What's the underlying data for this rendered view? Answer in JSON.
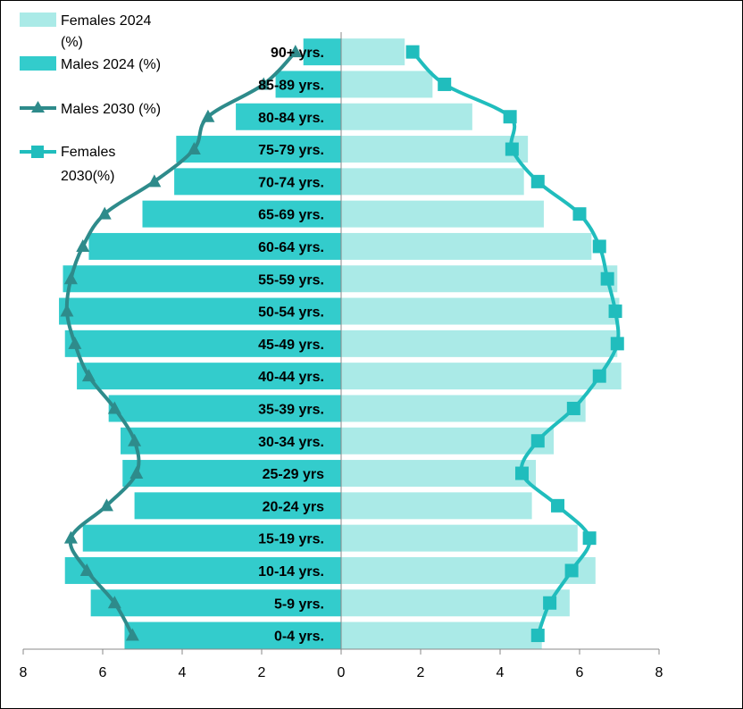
{
  "chart_data": {
    "type": "bar",
    "subtype": "population-pyramid",
    "categories": [
      "0-4 yrs.",
      "5-9 yrs.",
      "10-14 yrs.",
      "15-19 yrs.",
      "20-24 yrs",
      "25-29 yrs",
      "30-34 yrs.",
      "35-39 yrs.",
      "40-44 yrs.",
      "45-49 yrs.",
      "50-54 yrs.",
      "55-59 yrs.",
      "60-64 yrs.",
      "65-69 yrs.",
      "70-74 yrs.",
      "75-79 yrs.",
      "80-84 yrs.",
      "85-89 yrs.",
      "90+ yrs."
    ],
    "series": [
      {
        "name": "Females 2024 (%)",
        "kind": "bar",
        "side": "right",
        "color": "#aaeae7",
        "values": [
          5.05,
          5.75,
          6.4,
          5.95,
          4.8,
          4.9,
          5.35,
          6.15,
          7.05,
          6.95,
          7.0,
          6.95,
          6.3,
          5.1,
          4.6,
          4.7,
          3.3,
          2.3,
          1.6
        ]
      },
      {
        "name": "Males 2024 (%)",
        "kind": "bar",
        "side": "left",
        "color": "#33cccc",
        "values": [
          5.45,
          6.3,
          6.95,
          6.5,
          5.2,
          5.5,
          5.55,
          5.85,
          6.65,
          6.95,
          7.1,
          7.0,
          6.35,
          5.0,
          4.2,
          4.15,
          2.65,
          1.65,
          0.95
        ]
      },
      {
        "name": "Males 2030 (%)",
        "kind": "line",
        "side": "left",
        "marker": "triangle",
        "color": "#2e8b8b",
        "values": [
          5.25,
          5.7,
          6.4,
          6.8,
          5.9,
          5.15,
          5.2,
          5.7,
          6.35,
          6.7,
          6.9,
          6.8,
          6.5,
          5.95,
          4.7,
          3.7,
          3.35,
          1.95,
          1.15
        ]
      },
      {
        "name": "Females 2030(%)",
        "kind": "line",
        "side": "right",
        "marker": "square",
        "color": "#20bdbd",
        "values": [
          4.95,
          5.25,
          5.8,
          6.25,
          5.45,
          4.55,
          4.95,
          5.85,
          6.5,
          6.95,
          6.9,
          6.7,
          6.5,
          6.0,
          4.95,
          4.3,
          4.25,
          2.6,
          1.8
        ]
      }
    ],
    "x_ticks": [
      "8",
      "6",
      "4",
      "2",
      "0",
      "2",
      "4",
      "6",
      "8"
    ],
    "xlim": [
      -8,
      8
    ],
    "legend_placement": "top-left",
    "legend": [
      {
        "line1": "Females 2024",
        "line2": "(%)"
      },
      {
        "line1": "Males 2024 (%)",
        "line2": ""
      },
      {
        "line1": "Males 2030 (%)",
        "line2": ""
      },
      {
        "line1": "Females",
        "line2": "2030(%)"
      }
    ],
    "grid": false
  }
}
